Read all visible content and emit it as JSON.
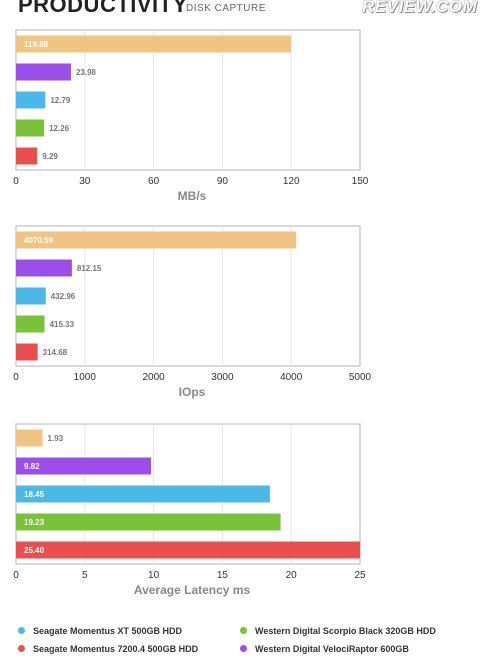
{
  "header": {
    "title": "PRODUCTIVITY",
    "subtitle": "DISK CAPTURE",
    "logo": "REVIEW.COM"
  },
  "legend": [
    {
      "name": "Seagate Momentus XT 500GB HDD",
      "color": "#4cb8e8"
    },
    {
      "name": "Western Digital Scorpio Black 320GB HDD",
      "color": "#79c23a"
    },
    {
      "name": "Seagate Momentus 7200.4 500GB HDD",
      "color": "#e8504f"
    },
    {
      "name": "Western Digital VelociRaptor 600GB",
      "color": "#9b4fe8"
    }
  ],
  "chart_data": [
    {
      "type": "bar",
      "orientation": "horizontal",
      "xlabel": "MB/s",
      "xlim": [
        0,
        150
      ],
      "ticks": [
        0,
        30,
        60,
        90,
        120,
        150
      ],
      "grid": true,
      "bars": [
        {
          "value": 119.88,
          "label": "119.88",
          "color": "#f0c482"
        },
        {
          "value": 23.98,
          "label": "23.98",
          "color": "#9b4fe8"
        },
        {
          "value": 12.79,
          "label": "12.79",
          "color": "#4cb8e8"
        },
        {
          "value": 12.26,
          "label": "12.26",
          "color": "#79c23a"
        },
        {
          "value": 9.29,
          "label": "9.29",
          "color": "#e8504f"
        }
      ]
    },
    {
      "type": "bar",
      "orientation": "horizontal",
      "xlabel": "IOps",
      "xlim": [
        0,
        5000
      ],
      "ticks": [
        0,
        1000,
        2000,
        3000,
        4000,
        5000
      ],
      "grid": true,
      "bars": [
        {
          "value": 4070.59,
          "label": "4070.59",
          "color": "#f0c482"
        },
        {
          "value": 812.15,
          "label": "812.15",
          "color": "#9b4fe8"
        },
        {
          "value": 432.96,
          "label": "432.96",
          "color": "#4cb8e8"
        },
        {
          "value": 415.33,
          "label": "415.33",
          "color": "#79c23a"
        },
        {
          "value": 314.68,
          "label": "314.68",
          "color": "#e8504f"
        }
      ]
    },
    {
      "type": "bar",
      "orientation": "horizontal",
      "xlabel": "Average Latency ms",
      "xlim": [
        0,
        25
      ],
      "ticks": [
        0,
        5,
        10,
        15,
        20,
        25
      ],
      "grid": true,
      "bars": [
        {
          "value": 1.93,
          "label": "1.93",
          "color": "#f0c482"
        },
        {
          "value": 9.82,
          "label": "9.82",
          "color": "#9b4fe8"
        },
        {
          "value": 18.45,
          "label": "18.45",
          "color": "#4cb8e8"
        },
        {
          "value": 19.23,
          "label": "19.23",
          "color": "#79c23a"
        },
        {
          "value": 25.4,
          "label": "25.40",
          "color": "#e8504f"
        }
      ]
    }
  ]
}
